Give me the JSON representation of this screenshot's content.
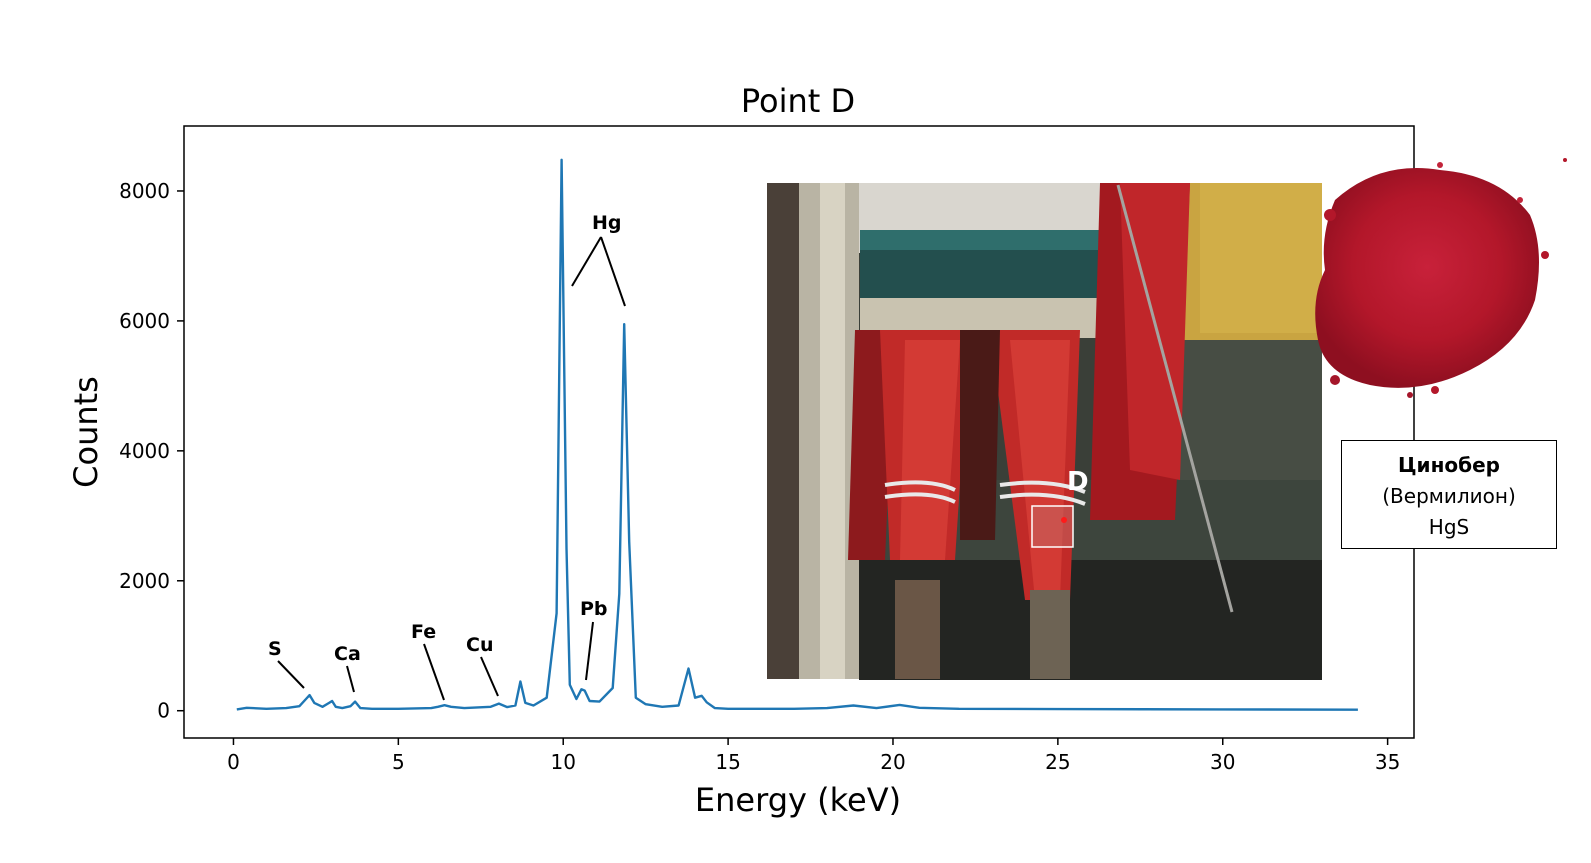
{
  "chart_data": {
    "type": "line",
    "title": "Point D",
    "xlabel": "Energy (keV)",
    "ylabel": "Counts",
    "xlim": [
      -1.5,
      35.8
    ],
    "ylim": [
      -420,
      9000
    ],
    "xticks": [
      0,
      5,
      10,
      15,
      20,
      25,
      30,
      35
    ],
    "yticks": [
      0,
      2000,
      4000,
      6000,
      8000
    ],
    "grid": false,
    "legend": "none",
    "series": [
      {
        "color": "#1f77b4",
        "x": [
          0.1,
          0.4,
          1.0,
          1.6,
          2.0,
          2.2,
          2.31,
          2.45,
          2.7,
          2.9,
          2.99,
          3.1,
          3.3,
          3.55,
          3.69,
          3.85,
          4.2,
          5.0,
          6.0,
          6.2,
          6.4,
          6.6,
          7.0,
          7.8,
          8.05,
          8.3,
          8.55,
          8.7,
          8.85,
          9.1,
          9.5,
          9.8,
          9.95,
          10.1,
          10.2,
          10.4,
          10.55,
          10.65,
          10.8,
          11.1,
          11.5,
          11.7,
          11.85,
          12.0,
          12.2,
          12.5,
          13.0,
          13.5,
          13.8,
          14.0,
          14.2,
          14.35,
          14.6,
          15.0,
          17.0,
          18.0,
          18.8,
          19.5,
          20.2,
          20.8,
          22.0,
          25.0,
          30.0,
          34.1
        ],
        "y": [
          20,
          45,
          30,
          40,
          70,
          180,
          240,
          120,
          60,
          120,
          150,
          60,
          40,
          70,
          140,
          40,
          30,
          30,
          40,
          60,
          85,
          60,
          40,
          60,
          110,
          55,
          80,
          450,
          120,
          80,
          200,
          1500,
          8480,
          2500,
          400,
          180,
          330,
          310,
          150,
          140,
          350,
          1800,
          5950,
          2600,
          200,
          100,
          60,
          80,
          650,
          200,
          230,
          130,
          40,
          30,
          30,
          40,
          80,
          40,
          90,
          45,
          30,
          25,
          20,
          15
        ]
      }
    ],
    "annotations": [
      "S",
      "Ca",
      "Fe",
      "Cu",
      "Pb",
      "Hg"
    ]
  },
  "inset_photo": {
    "marker_label": "D"
  },
  "pigment": {
    "name": "Цинобер",
    "alt_name": "(Вермилион)",
    "formula": "HgS",
    "color": "#b3172a"
  }
}
